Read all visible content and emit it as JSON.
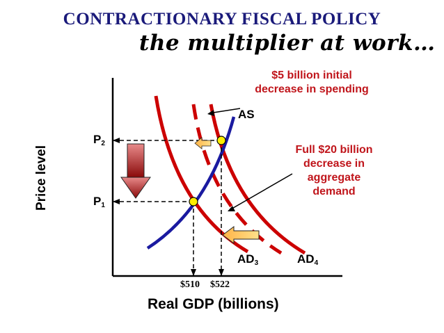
{
  "title": "CONTRACTIONARY FISCAL POLICY",
  "subtitle": "the multiplier at work…",
  "annotations": {
    "initial_decrease_line1": "$5 billion initial",
    "initial_decrease_line2": "decrease in spending",
    "full_decrease_line1": "Full $20 billion",
    "full_decrease_line2": "decrease in",
    "full_decrease_line3": "aggregate",
    "full_decrease_line4": "demand"
  },
  "axes": {
    "x_label": "Real GDP (billions)",
    "y_label": "Price level"
  },
  "curves": {
    "as": "AS",
    "ad3": {
      "base": "AD",
      "sub": "3"
    },
    "ad4": {
      "base": "AD",
      "sub": "4"
    }
  },
  "price_levels": {
    "p2": {
      "base": "P",
      "sub": "2"
    },
    "p1": {
      "base": "P",
      "sub": "1"
    }
  },
  "gdp_ticks": [
    "$510",
    "$522"
  ],
  "colors": {
    "title": "#1a1a7a",
    "ad_curves": "#cc0000",
    "as_curve": "#1a1aa0",
    "annotation_text": "#c0151b",
    "equilibrium_point": "#ffee00",
    "shift_arrow": "#ffcc44",
    "price_drop_arrow": "#a01010"
  },
  "icons": {
    "price_drop": "down-arrow-icon",
    "shift_left": "left-arrow-icon"
  }
}
